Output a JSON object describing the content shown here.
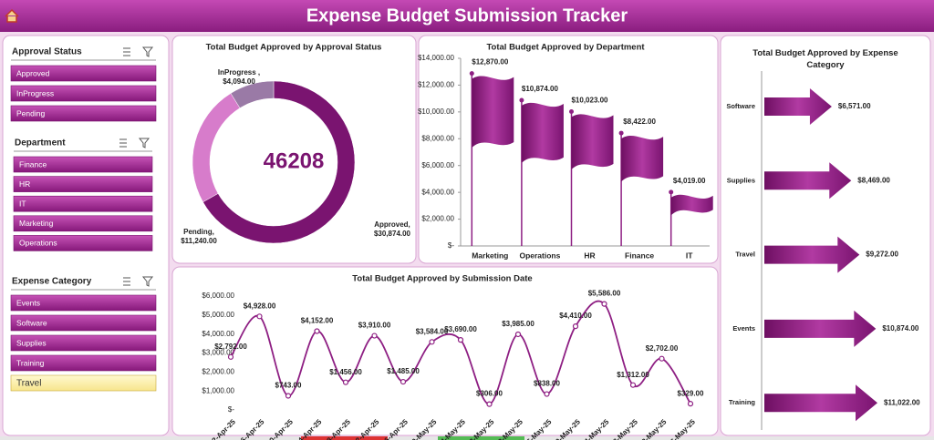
{
  "header": {
    "title": "Expense Budget Submission Tracker"
  },
  "slicers": [
    {
      "title": "Approval Status",
      "items": [
        "Approved",
        "InProgress",
        "Pending"
      ]
    },
    {
      "title": "Department",
      "items": [
        "Finance",
        "HR",
        "IT",
        "Marketing",
        "Operations"
      ]
    },
    {
      "title": "Expense Category",
      "items": [
        "Events",
        "Software",
        "Supplies",
        "Training",
        "Travel"
      ],
      "selected": 4
    }
  ],
  "chart_data": [
    {
      "type": "donut",
      "title": "Total Budget Approved by Approval Status",
      "center_label": 46208,
      "categories": [
        "Approved,",
        "Pending,",
        "InProgress ,"
      ],
      "values": [
        30874,
        11240,
        4094
      ],
      "value_labels": [
        "$30,874.00",
        "$11,240.00",
        "$4,094.00"
      ],
      "colors": [
        "#7a1470",
        "#d77ccb",
        "#9a7aa6"
      ]
    },
    {
      "type": "flag_bar",
      "title": "Total Budget Approved by Department",
      "categories": [
        "Marketing",
        "Operations",
        "HR",
        "Finance",
        "IT"
      ],
      "values": [
        12870,
        10874,
        10023,
        8422,
        4019
      ],
      "value_labels": [
        "$12,870.00",
        "$10,874.00",
        "$10,023.00",
        "$8,422.00",
        "$4,019.00"
      ],
      "color": "#8e1f83",
      "ylim": [
        0,
        14000
      ],
      "yticks": [
        {
          "value": 0,
          "label": "$-"
        },
        {
          "value": 2000,
          "label": "$2,000.00"
        },
        {
          "value": 4000,
          "label": "$4,000.00"
        },
        {
          "value": 6000,
          "label": "$6,000.00"
        },
        {
          "value": 8000,
          "label": "$8,000.00"
        },
        {
          "value": 10000,
          "label": "$10,000.00"
        },
        {
          "value": 12000,
          "label": "$12,000.00"
        },
        {
          "value": 14000,
          "label": "$14,000.00"
        }
      ]
    },
    {
      "type": "arrow_bar",
      "title": "Total Budget Approved by Expense Category",
      "categories": [
        "Software",
        "Supplies",
        "Travel",
        "Events",
        "Training"
      ],
      "values": [
        6571,
        8469,
        9272,
        10874,
        11022
      ],
      "value_labels": [
        "$6,571.00",
        "$8,469.00",
        "$9,272.00",
        "$10,874.00",
        "$11,022.00"
      ],
      "color": "#8e1f83"
    },
    {
      "type": "line",
      "title": "Total Budget Approved by Submission Date",
      "categories": [
        "2-Apr-25",
        "6-Apr-25",
        "0-Apr-25",
        "4-Apr-25",
        "8-Apr-25",
        "2-Apr-25",
        "6-Apr-25",
        "0-May-25",
        "4-May-25",
        "8-May-25",
        "2-May-25",
        "6-May-25",
        "0-May-25",
        "4-May-25",
        "8-May-25",
        "2-May-25",
        "6-May-25"
      ],
      "values": [
        2792,
        4928,
        743,
        4152,
        1456,
        3910,
        1485,
        3584,
        3690,
        306,
        3985,
        838,
        4410,
        5586,
        1312,
        2702,
        329
      ],
      "value_labels": [
        "$2,792.00",
        "$4,928.00",
        "$743.00",
        "$4,152.00",
        "$1,456.00",
        "$3,910.00",
        "$1,485.00",
        "$3,584.00",
        "$3,690.00",
        "$306.00",
        "$3,985.00",
        "$838.00",
        "$4,410.00",
        "$5,586.00",
        "$1,312.00",
        "$2,702.00",
        "$329.00"
      ],
      "color": "#8e1f83",
      "ylim": [
        0,
        6000
      ],
      "yticks": [
        {
          "value": 0,
          "label": "$-"
        },
        {
          "value": 1000,
          "label": "$1,000.00"
        },
        {
          "value": 2000,
          "label": "$2,000.00"
        },
        {
          "value": 3000,
          "label": "$3,000.00"
        },
        {
          "value": 4000,
          "label": "$4,000.00"
        },
        {
          "value": 5000,
          "label": "$5,000.00"
        },
        {
          "value": 6000,
          "label": "$6,000.00"
        }
      ]
    }
  ]
}
